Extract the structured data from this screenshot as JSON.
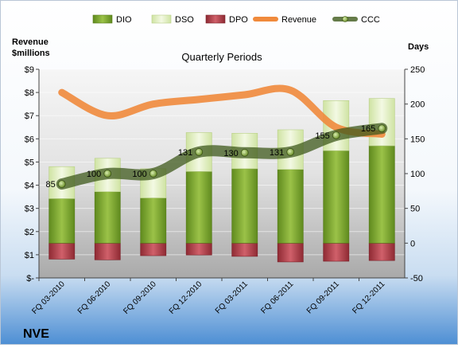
{
  "chart_data": {
    "type": "bar",
    "title": "Quarterly Periods",
    "company": "NVE",
    "left_axis_title": [
      "Revenue",
      "$millions"
    ],
    "right_axis_title": "Days",
    "categories": [
      "FQ 03-2010",
      "FQ 06-2010",
      "FQ 09-2010",
      "FQ 12-2010",
      "FQ 03-2011",
      "FQ 06-2011",
      "FQ 09-2011",
      "FQ 12-2011"
    ],
    "left_axis": {
      "ticks": [
        "$-",
        "$1",
        "$2",
        "$3",
        "$4",
        "$5",
        "$6",
        "$7",
        "$8",
        "$9"
      ],
      "ylim": [
        0,
        9
      ]
    },
    "right_axis": {
      "ticks": [
        "-50",
        "0",
        "50",
        "100",
        "150",
        "200",
        "250"
      ],
      "ylim": [
        -50,
        250
      ]
    },
    "legend": {
      "position": "top",
      "entries": [
        "DIO",
        "DSO",
        "DPO",
        "Revenue",
        "CCC"
      ]
    },
    "series": [
      {
        "name": "DIO",
        "axis": "right",
        "kind": "stacked-bar",
        "color": "#7aa030",
        "values": [
          64,
          74,
          65,
          103,
          107,
          106,
          133,
          140
        ]
      },
      {
        "name": "DSO",
        "axis": "right",
        "kind": "stacked-bar",
        "color": "#e8f2c8",
        "values": [
          46,
          48,
          42,
          56,
          51,
          57,
          72,
          68
        ]
      },
      {
        "name": "DPO",
        "axis": "right",
        "kind": "negative-bar",
        "color": "#c0404a",
        "values": [
          -23,
          -24,
          -18,
          -17,
          -19,
          -27,
          -26,
          -25
        ]
      },
      {
        "name": "Revenue",
        "axis": "left",
        "kind": "line",
        "color": "#f08a3c",
        "values": [
          8.0,
          7.0,
          7.5,
          7.7,
          7.9,
          8.1,
          6.5,
          6.2
        ]
      },
      {
        "name": "CCC",
        "axis": "right",
        "kind": "line-markers",
        "color": "#4f6a22",
        "values": [
          85,
          100,
          100,
          131,
          130,
          131,
          155,
          165
        ],
        "labels": [
          "85",
          "100",
          "100",
          "131",
          "130",
          "131",
          "155",
          "165"
        ]
      }
    ]
  }
}
